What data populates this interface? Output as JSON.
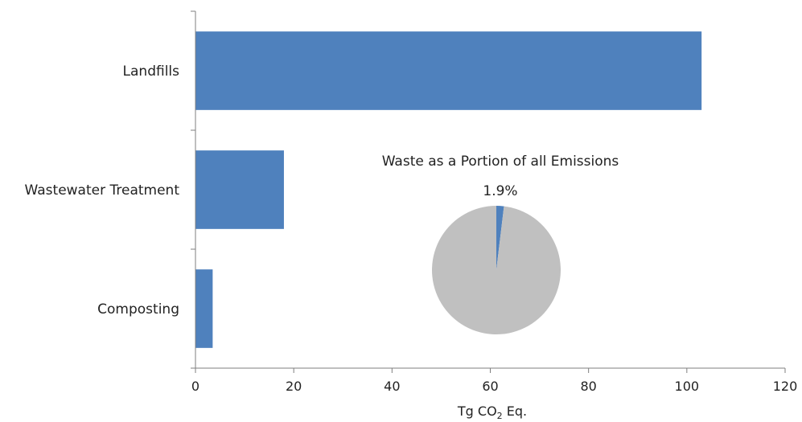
{
  "chart_data": [
    {
      "type": "bar",
      "orientation": "horizontal",
      "categories": [
        "Landfills",
        "Wastewater Treatment",
        "Composting"
      ],
      "values": [
        103,
        18,
        3.5
      ],
      "xlabel": "Tg CO",
      "xlabel_subscript": "2",
      "xlabel_suffix": " Eq.",
      "xlim": [
        0,
        120
      ],
      "xticks": [
        "0",
        "20",
        "40",
        "60",
        "80",
        "100",
        "120"
      ],
      "grid": false,
      "bar_color": "#4f81bd"
    },
    {
      "type": "pie",
      "title": "Waste as a Portion of all Emissions",
      "slices": [
        {
          "value": 1.9,
          "label": "1.9%",
          "color": "#4f81bd"
        },
        {
          "value": 98.1,
          "label": "",
          "color": "#c0c0c0"
        }
      ]
    }
  ]
}
